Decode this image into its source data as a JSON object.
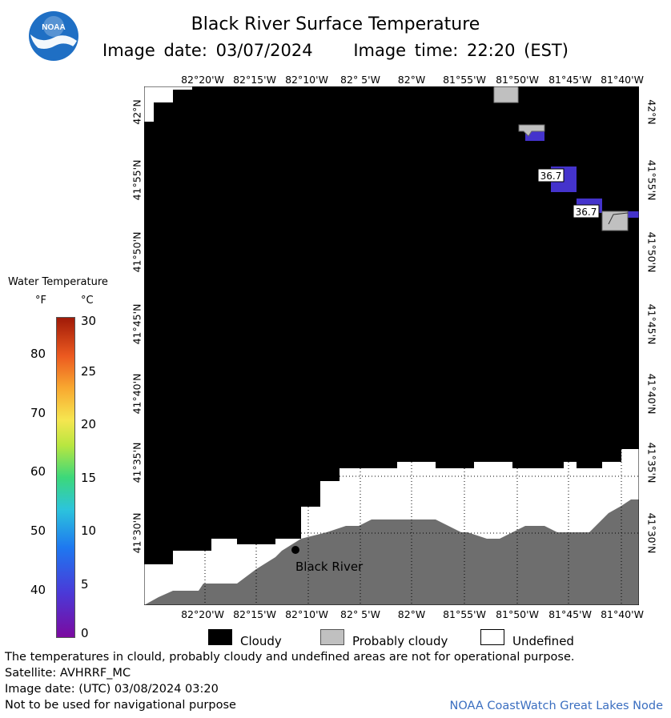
{
  "header": {
    "title": "Black River Surface Temperature",
    "image_date": "Image date: 03/07/2024",
    "image_time": "Image time: 22:20 (EST)"
  },
  "logo": {
    "text": "NOAA"
  },
  "map": {
    "longitude_labels": [
      "82°20'W",
      "82°15'W",
      "82°10'W",
      "82° 5'W",
      "82°W",
      "81°55'W",
      "81°50'W",
      "81°45'W",
      "81°40'W"
    ],
    "latitude_labels": [
      "42°N",
      "41°55'N",
      "41°50'N",
      "41°45'N",
      "41°40'N",
      "41°35'N",
      "41°30'N"
    ],
    "place_label": "Black River",
    "temperature_labels": [
      "36.7",
      "36.7"
    ],
    "colors": {
      "cloudy": "#000000",
      "probably_cloudy": "#c0c0c0",
      "undefined": "#ffffff",
      "land": "#6e6e6e",
      "water_36_7": "#4433cc"
    }
  },
  "legend": {
    "title": "Water Temperature",
    "unit_f": "°F",
    "unit_c": "°C",
    "f_labels": [
      "80",
      "70",
      "60",
      "50",
      "40"
    ],
    "c_labels": [
      "30",
      "25",
      "20",
      "15",
      "10",
      "5",
      "0"
    ]
  },
  "category_legend": {
    "cloudy": "Cloudy",
    "probably_cloudy": "Probably cloudy",
    "undefined": "Undefined"
  },
  "footer": {
    "note": "The temperatures in clould, probably cloudy and undefined areas are not for operational purpose.",
    "satellite": "Satellite: AVHRRF_MC",
    "utc_date": "Image date: (UTC) 03/08/2024  03:20",
    "nav_warning": "Not to be used for navigational purpose",
    "credit": "NOAA CoastWatch Great Lakes Node"
  }
}
